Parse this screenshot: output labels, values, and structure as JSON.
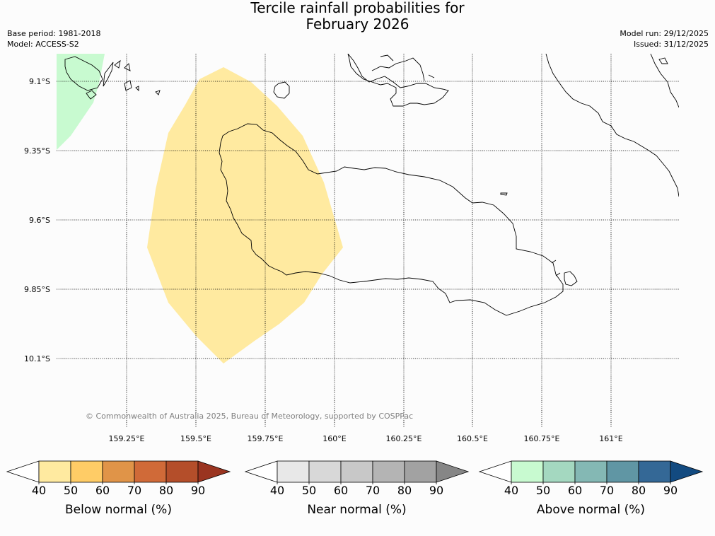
{
  "title": {
    "line1": "Tercile rainfall probabilities for",
    "line2": "February 2026"
  },
  "meta": {
    "base_period": "Base period: 1981-2018",
    "model": "Model: ACCESS-S2",
    "model_run": "Model run: 29/12/2025",
    "issued": "Issued: 31/12/2025"
  },
  "map": {
    "lat_labels": [
      "9.1°S",
      "9.35°S",
      "9.6°S",
      "9.85°S",
      "10.1°S"
    ],
    "lon_labels": [
      "159.25°E",
      "159.5°E",
      "159.75°E",
      "160°E",
      "160.25°E",
      "160.5°E",
      "160.75°E",
      "161°E"
    ],
    "copyright": "© Commonwealth of Australia 2025, Bureau of Meteorology, supported by COSPPac",
    "regions": [
      {
        "category": "Below normal",
        "probability_band": "40-50",
        "color": "#ffeaa0"
      },
      {
        "category": "Above normal",
        "probability_band": "40-50",
        "color": "#c8fad0"
      }
    ]
  },
  "colorbars": [
    {
      "caption": "Below normal (%)",
      "ticks": [
        "40",
        "50",
        "60",
        "70",
        "80",
        "90"
      ],
      "colors": [
        "#ffffff",
        "#ffeaa0",
        "#ffcc66",
        "#e09448",
        "#d06a38",
        "#b44e2a",
        "#9a3420"
      ]
    },
    {
      "caption": "Near normal (%)",
      "ticks": [
        "40",
        "50",
        "60",
        "70",
        "80",
        "90"
      ],
      "colors": [
        "#ffffff",
        "#e8e8e8",
        "#d8d8d8",
        "#c8c8c8",
        "#b4b4b4",
        "#a2a2a2",
        "#868686"
      ]
    },
    {
      "caption": "Above normal (%)",
      "ticks": [
        "40",
        "50",
        "60",
        "70",
        "80",
        "90"
      ],
      "colors": [
        "#ffffff",
        "#c8fad0",
        "#a4d8c0",
        "#84b8b4",
        "#6096a4",
        "#346896",
        "#124a80"
      ]
    }
  ]
}
